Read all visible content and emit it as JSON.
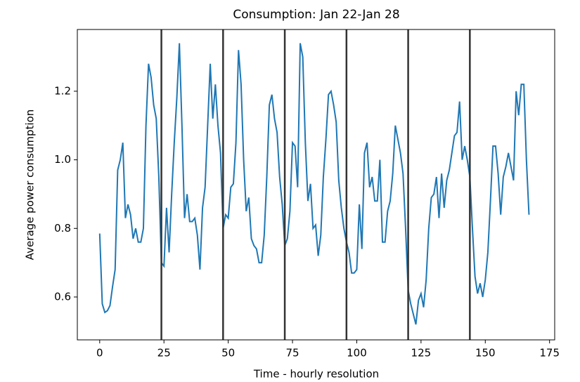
{
  "chart_data": {
    "type": "line",
    "title": "Consumption: Jan 22-Jan 28",
    "xlabel": "Time - hourly resolution",
    "ylabel": "Average power consumption",
    "x": [
      0,
      1,
      2,
      3,
      4,
      5,
      6,
      7,
      8,
      9,
      10,
      11,
      12,
      13,
      14,
      15,
      16,
      17,
      18,
      19,
      20,
      21,
      22,
      23,
      24,
      25,
      26,
      27,
      28,
      29,
      30,
      31,
      32,
      33,
      34,
      35,
      36,
      37,
      38,
      39,
      40,
      41,
      42,
      43,
      44,
      45,
      46,
      47,
      48,
      49,
      50,
      51,
      52,
      53,
      54,
      55,
      56,
      57,
      58,
      59,
      60,
      61,
      62,
      63,
      64,
      65,
      66,
      67,
      68,
      69,
      70,
      71,
      72,
      73,
      74,
      75,
      76,
      77,
      78,
      79,
      80,
      81,
      82,
      83,
      84,
      85,
      86,
      87,
      88,
      89,
      90,
      91,
      92,
      93,
      94,
      95,
      96,
      97,
      98,
      99,
      100,
      101,
      102,
      103,
      104,
      105,
      106,
      107,
      108,
      109,
      110,
      111,
      112,
      113,
      114,
      115,
      116,
      117,
      118,
      119,
      120,
      121,
      122,
      123,
      124,
      125,
      126,
      127,
      128,
      129,
      130,
      131,
      132,
      133,
      134,
      135,
      136,
      137,
      138,
      139,
      140,
      141,
      142,
      143,
      144,
      145,
      146,
      147,
      148,
      149,
      150,
      151,
      152,
      153,
      154,
      155,
      156,
      157,
      158,
      159,
      160,
      161,
      162,
      163,
      164,
      165,
      166,
      167
    ],
    "series": [
      {
        "color": "#1f77b4",
        "values": [
          0.785,
          0.58,
          0.555,
          0.56,
          0.575,
          0.63,
          0.68,
          0.97,
          1.0,
          1.05,
          0.83,
          0.87,
          0.84,
          0.77,
          0.8,
          0.76,
          0.76,
          0.8,
          1.1,
          1.28,
          1.24,
          1.16,
          1.12,
          0.95,
          0.7,
          0.69,
          0.86,
          0.73,
          0.9,
          1.05,
          1.18,
          1.34,
          1.1,
          0.83,
          0.9,
          0.82,
          0.82,
          0.83,
          0.78,
          0.68,
          0.86,
          0.92,
          1.1,
          1.28,
          1.12,
          1.22,
          1.1,
          1.02,
          0.8,
          0.84,
          0.83,
          0.92,
          0.93,
          1.05,
          1.32,
          1.22,
          1.0,
          0.85,
          0.89,
          0.77,
          0.75,
          0.74,
          0.7,
          0.7,
          0.78,
          0.95,
          1.16,
          1.19,
          1.12,
          1.08,
          0.95,
          0.87,
          0.75,
          0.77,
          0.85,
          1.05,
          1.04,
          0.92,
          1.34,
          1.3,
          1.05,
          0.88,
          0.93,
          0.8,
          0.81,
          0.72,
          0.78,
          0.95,
          1.06,
          1.19,
          1.2,
          1.16,
          1.11,
          0.94,
          0.86,
          0.8,
          0.76,
          0.73,
          0.67,
          0.67,
          0.68,
          0.87,
          0.74,
          1.02,
          1.05,
          0.92,
          0.95,
          0.88,
          0.88,
          1.0,
          0.76,
          0.76,
          0.85,
          0.88,
          0.96,
          1.1,
          1.06,
          1.02,
          0.96,
          0.8,
          0.62,
          0.58,
          0.55,
          0.52,
          0.59,
          0.61,
          0.57,
          0.65,
          0.8,
          0.89,
          0.9,
          0.95,
          0.83,
          0.96,
          0.86,
          0.94,
          0.97,
          1.02,
          1.07,
          1.08,
          1.17,
          1.0,
          1.04,
          1.0,
          0.95,
          0.8,
          0.66,
          0.61,
          0.64,
          0.6,
          0.65,
          0.73,
          0.88,
          1.04,
          1.04,
          0.96,
          0.84,
          0.95,
          0.98,
          1.02,
          0.98,
          0.94,
          1.2,
          1.13,
          1.22,
          1.22,
          1.0,
          0.84
        ]
      }
    ],
    "vlines": [
      24,
      48,
      72,
      96,
      120,
      144
    ],
    "vline_color": "#333333",
    "xlim": [
      -8.7,
      177
    ],
    "ylim": [
      0.475,
      1.38
    ],
    "xticks": [
      0,
      25,
      50,
      75,
      100,
      125,
      150,
      175
    ],
    "yticks": [
      0.6,
      0.8,
      {
        "value": 1,
        "label": "1.0"
      },
      1.2
    ]
  }
}
